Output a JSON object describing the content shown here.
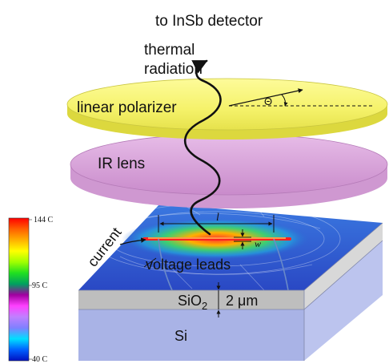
{
  "labels": {
    "detector": "to InSb detector",
    "thermal_line1": "thermal",
    "thermal_line2": "radiation",
    "polarizer": "linear polarizer",
    "theta": "Θ",
    "lens": "IR lens",
    "current": "current",
    "voltage_leads": "voltage leads",
    "length_symbol": "l",
    "width_symbol": "w",
    "sio2_main": "SiO",
    "sio2_sub": "2",
    "thickness": "2 μm",
    "si": "Si"
  },
  "colorbar": {
    "max_label": "144 C",
    "mid_label": "95 C",
    "min_label": "40 C",
    "stops": [
      "#ff0000",
      "#ff6000",
      "#ffb000",
      "#ffff00",
      "#a0ff00",
      "#20e020",
      "#00a060",
      "#a000a0",
      "#ff40ff",
      "#c080ff",
      "#8080ff",
      "#00e0ff",
      "#0060ff",
      "#0010c0"
    ]
  },
  "colors": {
    "polarizer": "#fbf97a",
    "lens": "#dba6dc",
    "oxide": "#bebebe",
    "silicon": "#a9b3e6",
    "surface": "#2d5fd0",
    "hot_wire": "#ff2020"
  }
}
